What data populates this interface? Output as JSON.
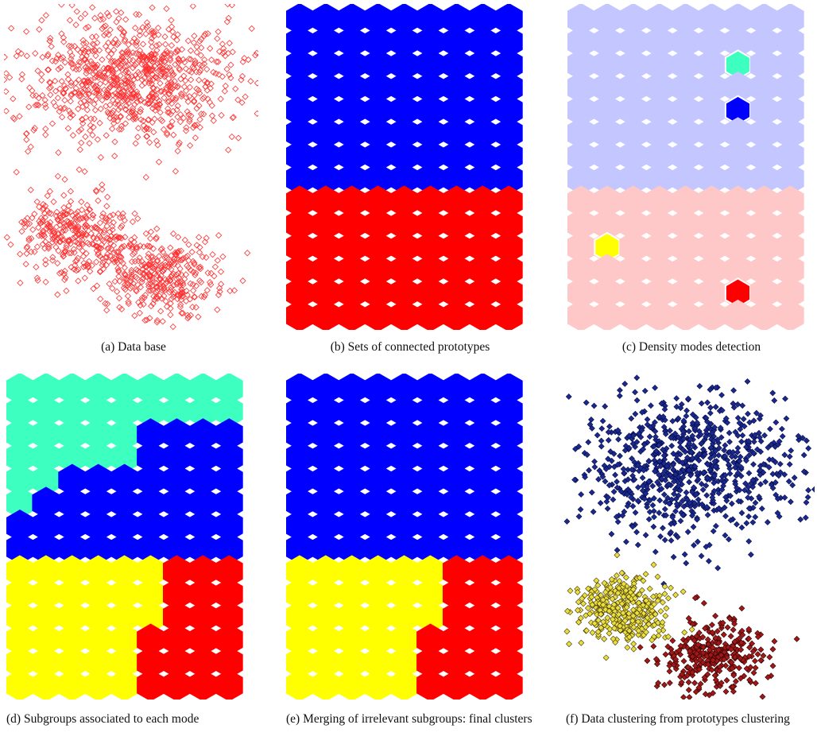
{
  "panels": [
    {
      "caption": "(a)  Data base"
    },
    {
      "caption": "(b)  Sets of connected prototypes"
    },
    {
      "caption": "(c)  Density modes detection"
    },
    {
      "caption": "(d)  Subgroups associated to each mode"
    },
    {
      "caption": "(e)  Merging of irrelevant subgroups: final clusters"
    },
    {
      "caption": "(f)  Data clustering from prototypes clustering"
    }
  ]
}
